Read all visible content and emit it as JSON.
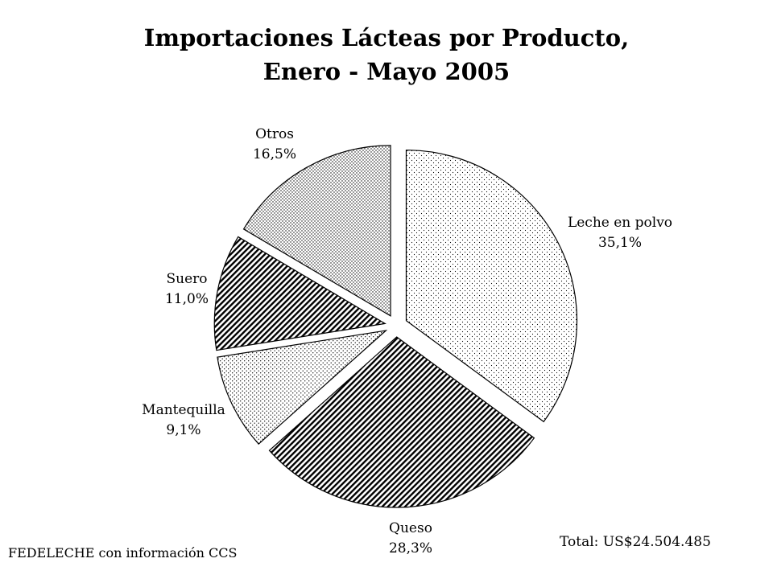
{
  "chart_data": {
    "type": "pie",
    "title": [
      "Importaciones Lácteas por Producto,",
      "Enero - Mayo 2005"
    ],
    "unit": "%",
    "start_angle_deg": 0,
    "direction": "clockwise",
    "slices": [
      {
        "name": "Leche en polvo",
        "value": 35.1,
        "label": "35,1%",
        "pattern": "light-dots"
      },
      {
        "name": "Queso",
        "value": 28.3,
        "label": "28,3%",
        "pattern": "dense-diagonal"
      },
      {
        "name": "Mantequilla",
        "value": 9.1,
        "label": "9,1%",
        "pattern": "medium-dots"
      },
      {
        "name": "Suero",
        "value": 11.0,
        "label": "11,0%",
        "pattern": "dense-diagonal"
      },
      {
        "name": "Otros",
        "value": 16.5,
        "label": "16,5%",
        "pattern": "dense-dots"
      }
    ],
    "slice_style": "exploded",
    "legend": "none"
  },
  "footer": {
    "source": "FEDELECHE con información CCS",
    "total": "Total: US$24.504.485"
  }
}
